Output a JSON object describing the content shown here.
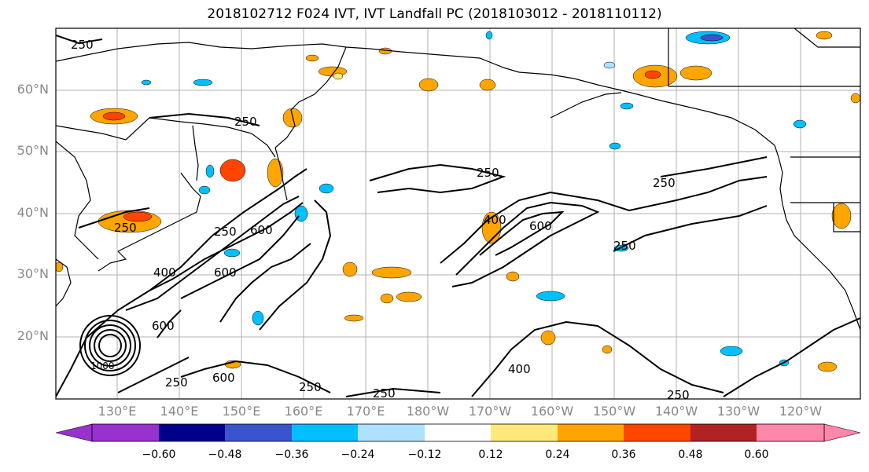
{
  "title": "2018102712 F024 IVT, IVT Landfall PC (2018103012 - 2018110112)",
  "lat_labels": [
    "60°N",
    "50°N",
    "40°N",
    "30°N",
    "20°N"
  ],
  "lon_labels": [
    "130°E",
    "140°E",
    "150°E",
    "160°E",
    "170°E",
    "180°W",
    "170°W",
    "160°W",
    "150°W",
    "140°W",
    "130°W",
    "120°W"
  ],
  "colorbar": {
    "tick_labels": [
      "−0.60",
      "−0.48",
      "−0.36",
      "−0.24",
      "−0.12",
      "0.12",
      "0.24",
      "0.36",
      "0.48",
      "0.60"
    ],
    "colors": [
      "#9932cc",
      "#00008b",
      "#3a55cc",
      "#00bfff",
      "#aee0ff",
      "#ffffff",
      "#ffe87c",
      "#ffa500",
      "#ff4500",
      "#b22222",
      "#ff88aa"
    ]
  },
  "contour_labels": [
    "250",
    "250",
    "250",
    "250",
    "250",
    "250",
    "250",
    "250",
    "250",
    "250",
    "250",
    "400",
    "400",
    "400",
    "600",
    "600",
    "600",
    "600",
    "600",
    "1000"
  ],
  "palette": {
    "land_line": "#000000",
    "grid": "#b0b0b0",
    "positive": [
      "#ffe87c",
      "#ffa500",
      "#ff4500"
    ],
    "negative": [
      "#aee0ff",
      "#00bfff",
      "#3a55cc"
    ]
  }
}
